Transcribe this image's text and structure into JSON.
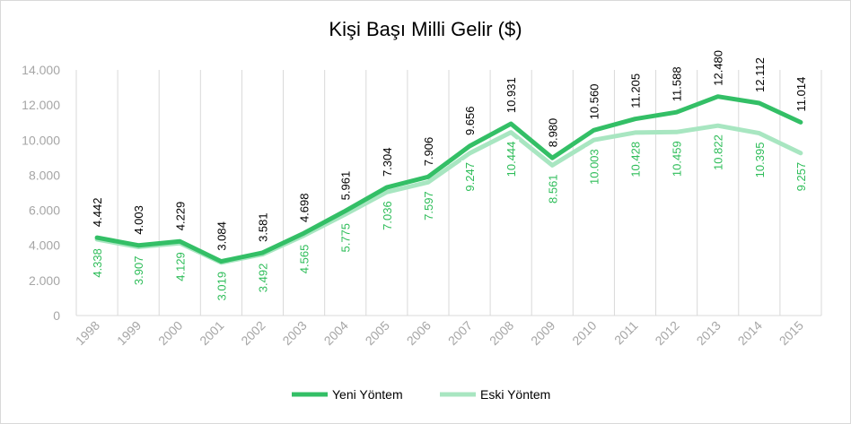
{
  "chart_data": {
    "type": "line",
    "title": "Kişi Başı Milli Gelir ($)",
    "categories": [
      "1998",
      "1999",
      "2000",
      "2001",
      "2002",
      "2003",
      "2004",
      "2005",
      "2006",
      "2007",
      "2008",
      "2009",
      "2010",
      "2011",
      "2012",
      "2013",
      "2014",
      "2015"
    ],
    "series": [
      {
        "name": "Yeni Yöntem",
        "color": "#33bf66",
        "values": [
          4442,
          4003,
          4229,
          3084,
          3581,
          4698,
          5961,
          7304,
          7906,
          9656,
          10931,
          8980,
          10560,
          11205,
          11588,
          12480,
          12112,
          11014
        ],
        "labels": [
          "4.442",
          "4.003",
          "4.229",
          "3.084",
          "3.581",
          "4.698",
          "5.961",
          "7.304",
          "7.906",
          "9.656",
          "10.931",
          "8.980",
          "10.560",
          "11.205",
          "11.588",
          "12.480",
          "12.112",
          "11.014"
        ]
      },
      {
        "name": "Eski Yöntem",
        "color": "#a8e6c1",
        "values": [
          4338,
          3907,
          4129,
          3019,
          3492,
          4565,
          5775,
          7036,
          7597,
          9247,
          10444,
          8561,
          10003,
          10428,
          10459,
          10822,
          10395,
          9257
        ],
        "labels": [
          "4.338",
          "3.907",
          "4.129",
          "3.019",
          "3.492",
          "4.565",
          "5.775",
          "7.036",
          "7.597",
          "9.247",
          "10.444",
          "8.561",
          "10.003",
          "10.428",
          "10.459",
          "10.822",
          "10.395",
          "9.257"
        ]
      }
    ],
    "ylim": [
      0,
      14000
    ],
    "yticks": [
      0,
      2000,
      4000,
      6000,
      8000,
      10000,
      12000,
      14000
    ],
    "ytick_labels": [
      "0",
      "2.000",
      "4.000",
      "6.000",
      "8.000",
      "10.000",
      "12.000",
      "14.000"
    ],
    "grid": "vertical",
    "legend": "bottom-center",
    "label_colors": {
      "new": "#000000",
      "old": "#2ebd59"
    }
  }
}
